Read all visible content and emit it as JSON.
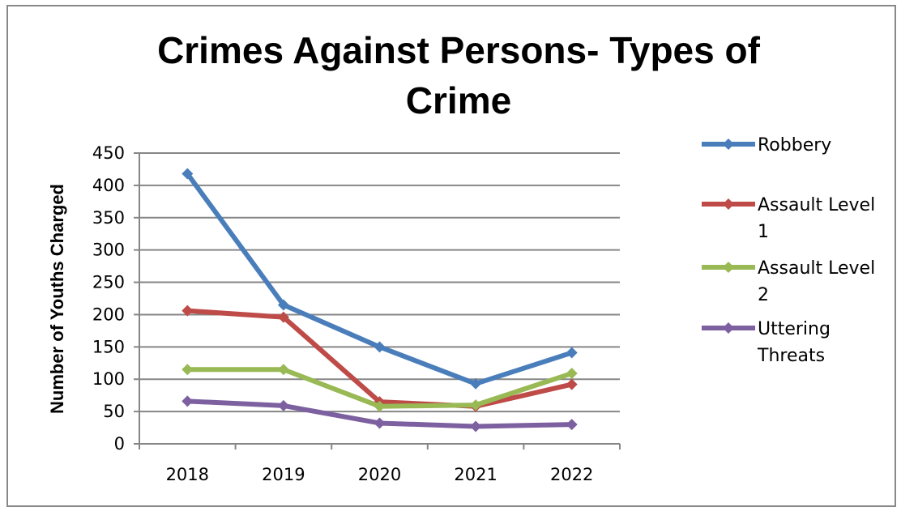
{
  "chart_data": {
    "type": "line",
    "title_lines": [
      "Crimes Against Persons- Types of",
      "Crime"
    ],
    "xlabel": "",
    "ylabel": "Number of Youths Charged",
    "x": [
      "2018",
      "2019",
      "2020",
      "2021",
      "2022"
    ],
    "ylim": [
      0,
      450
    ],
    "yticks": [
      "0",
      "50",
      "100",
      "150",
      "200",
      "250",
      "300",
      "350",
      "400",
      "450"
    ],
    "grid": true,
    "legend_position": "right",
    "series": [
      {
        "name": "Robbery",
        "name_lines": [
          "Robbery"
        ],
        "color": "#4a7ebb",
        "values": [
          418,
          215,
          150,
          93,
          141
        ]
      },
      {
        "name": "Assault Level 1",
        "name_lines": [
          "Assault Level",
          "1"
        ],
        "color": "#be4b48",
        "values": [
          206,
          196,
          65,
          58,
          92
        ]
      },
      {
        "name": "Assault Level 2",
        "name_lines": [
          "Assault Level",
          "2"
        ],
        "color": "#98b954",
        "values": [
          115,
          115,
          58,
          60,
          109
        ]
      },
      {
        "name": "Uttering Threats",
        "name_lines": [
          "Uttering",
          "Threats"
        ],
        "color": "#7d60a0",
        "values": [
          66,
          59,
          32,
          27,
          30
        ]
      }
    ]
  }
}
